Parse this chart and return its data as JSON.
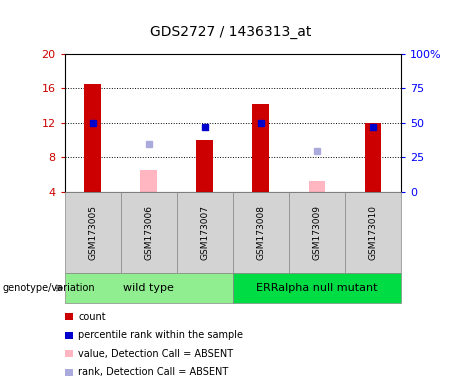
{
  "title": "GDS2727 / 1436313_at",
  "samples": [
    "GSM173005",
    "GSM173006",
    "GSM173007",
    "GSM173008",
    "GSM173009",
    "GSM173010"
  ],
  "count_values": [
    16.5,
    null,
    10.0,
    14.2,
    null,
    12.0
  ],
  "count_absent": [
    null,
    6.6,
    null,
    null,
    5.3,
    null
  ],
  "percentile_values": [
    12.0,
    null,
    11.5,
    12.0,
    null,
    11.5
  ],
  "percentile_absent": [
    null,
    9.5,
    null,
    null,
    8.7,
    null
  ],
  "ylim_left": [
    4,
    20
  ],
  "ylim_right": [
    0,
    100
  ],
  "yticks_left": [
    4,
    8,
    12,
    16,
    20
  ],
  "yticks_right": [
    0,
    25,
    50,
    75,
    100
  ],
  "ytick_labels_right": [
    "0",
    "25",
    "50",
    "75",
    "100%"
  ],
  "groups": [
    {
      "label": "wild type",
      "samples_idx": [
        0,
        1,
        2
      ],
      "color": "#90EE90"
    },
    {
      "label": "ERRalpha null mutant",
      "samples_idx": [
        3,
        4,
        5
      ],
      "color": "#00DD44"
    }
  ],
  "bar_width": 0.3,
  "count_color": "#CC0000",
  "count_absent_color": "#FFB6C1",
  "percentile_color": "#0000CC",
  "percentile_absent_color": "#AAAADD",
  "sample_box_color": "#D3D3D3",
  "legend_items": [
    {
      "color": "#CC0000",
      "label": "count"
    },
    {
      "color": "#0000CC",
      "label": "percentile rank within the sample"
    },
    {
      "color": "#FFB6C1",
      "label": "value, Detection Call = ABSENT"
    },
    {
      "color": "#AAAADD",
      "label": "rank, Detection Call = ABSENT"
    }
  ]
}
